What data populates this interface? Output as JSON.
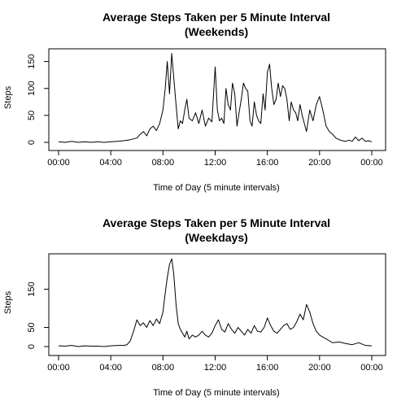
{
  "chart_data": [
    {
      "type": "line",
      "title": "Average Steps Taken per 5 Minute Interval",
      "subtitle": "(Weekends)",
      "xlabel": "Time of Day (5 minute intervals)",
      "ylabel": "Steps",
      "x_tick_labels": [
        "00:00",
        "04:00",
        "08:00",
        "12:00",
        "16:00",
        "20:00",
        "00:00"
      ],
      "x_tick_hours": [
        0,
        4,
        8,
        12,
        16,
        20,
        24
      ],
      "y_ticks": [
        0,
        50,
        100,
        150
      ],
      "xlim": [
        0,
        24
      ],
      "ylim": [
        0,
        166
      ],
      "grid": false,
      "series": [
        {
          "x": [
            0,
            0.5,
            1,
            1.5,
            2,
            2.5,
            3,
            3.5,
            4,
            4.5,
            5,
            5.5,
            6,
            6.25,
            6.5,
            6.75,
            7,
            7.25,
            7.5,
            7.75,
            8,
            8.17,
            8.33,
            8.5,
            8.67,
            8.83,
            9,
            9.17,
            9.33,
            9.5,
            9.67,
            9.83,
            10,
            10.25,
            10.5,
            10.75,
            11,
            11.25,
            11.5,
            11.75,
            12,
            12.17,
            12.33,
            12.5,
            12.67,
            12.83,
            13,
            13.17,
            13.33,
            13.5,
            13.67,
            13.83,
            14,
            14.17,
            14.33,
            14.5,
            14.67,
            14.83,
            15,
            15.17,
            15.33,
            15.5,
            15.67,
            15.83,
            16,
            16.17,
            16.33,
            16.5,
            16.67,
            16.83,
            17,
            17.17,
            17.33,
            17.5,
            17.67,
            17.83,
            18,
            18.17,
            18.33,
            18.5,
            18.67,
            18.83,
            19,
            19.25,
            19.5,
            19.75,
            20,
            20.25,
            20.5,
            20.75,
            21,
            21.25,
            21.5,
            21.75,
            22,
            22.25,
            22.5,
            22.75,
            23,
            23.25,
            23.5,
            23.75,
            24
          ],
          "y": [
            1,
            0,
            2,
            0,
            1,
            0,
            1,
            0,
            1,
            2,
            3,
            5,
            8,
            15,
            20,
            12,
            25,
            30,
            22,
            35,
            60,
            100,
            150,
            90,
            165,
            120,
            70,
            25,
            40,
            35,
            60,
            80,
            45,
            40,
            55,
            35,
            60,
            30,
            45,
            38,
            140,
            60,
            40,
            45,
            35,
            100,
            70,
            60,
            110,
            90,
            30,
            55,
            80,
            110,
            100,
            95,
            40,
            30,
            75,
            50,
            40,
            35,
            90,
            60,
            130,
            145,
            100,
            70,
            80,
            110,
            85,
            105,
            100,
            80,
            40,
            75,
            60,
            55,
            40,
            70,
            50,
            35,
            20,
            60,
            40,
            70,
            85,
            60,
            30,
            20,
            15,
            8,
            5,
            3,
            2,
            4,
            2,
            10,
            3,
            8,
            2,
            3,
            1
          ]
        }
      ]
    },
    {
      "type": "line",
      "title": "Average Steps Taken per 5 Minute Interval",
      "subtitle": "(Weekdays)",
      "xlabel": "Time of Day (5 minute intervals)",
      "ylabel": "Steps",
      "x_tick_labels": [
        "00:00",
        "04:00",
        "08:00",
        "12:00",
        "16:00",
        "20:00",
        "00:00"
      ],
      "x_tick_hours": [
        0,
        4,
        8,
        12,
        16,
        20,
        24
      ],
      "y_ticks": [
        0,
        50,
        150
      ],
      "xlim": [
        0,
        24
      ],
      "ylim": [
        0,
        230
      ],
      "grid": false,
      "series": [
        {
          "x": [
            0,
            0.5,
            1,
            1.5,
            2,
            2.5,
            3,
            3.5,
            4,
            4.5,
            5,
            5.25,
            5.5,
            5.75,
            6,
            6.25,
            6.5,
            6.75,
            7,
            7.25,
            7.5,
            7.75,
            8,
            8.17,
            8.33,
            8.5,
            8.67,
            8.83,
            9,
            9.17,
            9.33,
            9.5,
            9.67,
            9.83,
            10,
            10.25,
            10.5,
            10.75,
            11,
            11.25,
            11.5,
            11.75,
            12,
            12.25,
            12.5,
            12.75,
            13,
            13.25,
            13.5,
            13.75,
            14,
            14.25,
            14.5,
            14.75,
            15,
            15.25,
            15.5,
            15.75,
            16,
            16.25,
            16.5,
            16.75,
            17,
            17.25,
            17.5,
            17.75,
            18,
            18.25,
            18.5,
            18.75,
            19,
            19.25,
            19.5,
            19.75,
            20,
            20.25,
            20.5,
            20.75,
            21,
            21.5,
            22,
            22.5,
            23,
            23.5,
            24
          ],
          "y": [
            2,
            1,
            3,
            0,
            2,
            1,
            1,
            0,
            2,
            3,
            3,
            5,
            15,
            40,
            70,
            55,
            62,
            50,
            68,
            55,
            72,
            60,
            90,
            140,
            180,
            215,
            230,
            190,
            110,
            60,
            45,
            35,
            25,
            40,
            20,
            30,
            25,
            30,
            40,
            30,
            25,
            35,
            55,
            70,
            45,
            38,
            60,
            45,
            35,
            50,
            40,
            30,
            45,
            35,
            55,
            40,
            38,
            50,
            75,
            55,
            40,
            35,
            45,
            55,
            60,
            45,
            50,
            65,
            85,
            70,
            110,
            90,
            60,
            40,
            30,
            25,
            20,
            15,
            10,
            12,
            8,
            5,
            10,
            3,
            2
          ]
        }
      ]
    }
  ]
}
